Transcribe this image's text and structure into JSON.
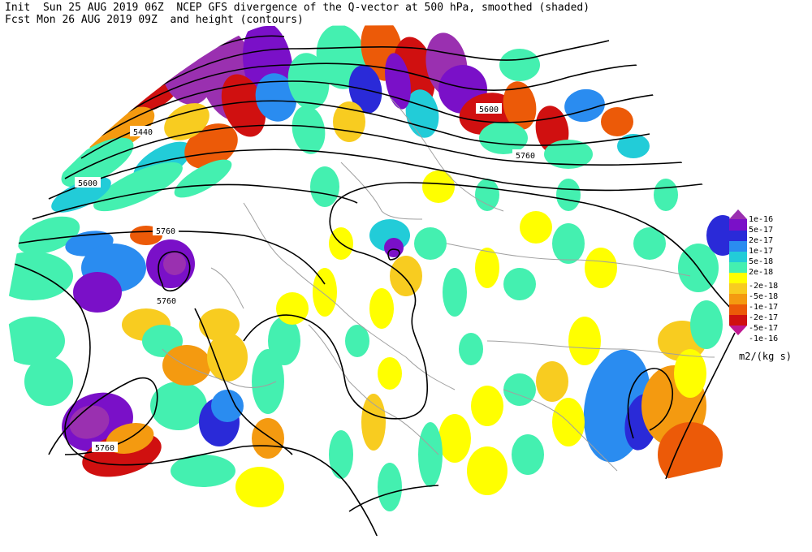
{
  "header": {
    "line1": "Init  Sun 25 AUG 2019 06Z  NCEP GFS divergence of the Q-vector at 500 hPa, smoothed (shaded)",
    "line2": "Fcst Mon 26 AUG 2019 09Z  and height (contours)"
  },
  "contour_labels": [
    {
      "text": "5440"
    },
    {
      "text": "5600"
    },
    {
      "text": "5760"
    },
    {
      "text": "5760"
    },
    {
      "text": "5760"
    },
    {
      "text": "5600"
    },
    {
      "text": "5760"
    }
  ],
  "colorbar": {
    "labels": [
      "1e-16",
      "5e-17",
      "2e-17",
      "1e-17",
      "5e-18",
      "2e-18",
      "-2e-18",
      "-5e-18",
      "-1e-17",
      "-2e-17",
      "-5e-17",
      "-1e-16"
    ],
    "colors": [
      "#9a30b0",
      "#7a10c8",
      "#2a2ad8",
      "#2a8cf0",
      "#22ccd8",
      "#44f0b0",
      "#ffff00",
      "#f8cc20",
      "#f49a10",
      "#ec5a08",
      "#d01010",
      "#c01890"
    ],
    "units": "m2/(kg s)"
  }
}
